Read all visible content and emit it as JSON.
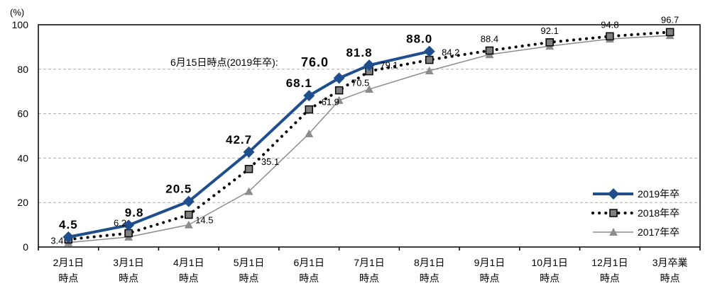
{
  "chart_data": {
    "type": "line",
    "title": "",
    "ylabel": "(%)",
    "xlabel": "",
    "ylim": [
      0,
      100
    ],
    "yticks": [
      0,
      20,
      40,
      60,
      80,
      100
    ],
    "grid": "horizontal dashed",
    "legend_position": "bottom-right",
    "categories": [
      [
        "2月1日",
        "時点"
      ],
      [
        "3月1日",
        "時点"
      ],
      [
        "4月1日",
        "時点"
      ],
      [
        "5月1日",
        "時点"
      ],
      [
        "6月1日",
        "時点"
      ],
      [
        "7月1日",
        "時点"
      ],
      [
        "8月1日",
        "時点"
      ],
      [
        "9月1日",
        "時点"
      ],
      [
        "10月1日",
        "時点"
      ],
      [
        "12月1日",
        "時点"
      ],
      [
        "3月卒業",
        "時点"
      ]
    ],
    "x_order": [
      "2月1日",
      "3月1日",
      "4月1日",
      "5月1日",
      "6月1日",
      "6月15日",
      "7月1日",
      "8月1日",
      "9月1日",
      "10月1日",
      "12月1日",
      "3月卒業"
    ],
    "series": [
      {
        "name": "2019年卒",
        "color": "#1f4e8c",
        "marker": "diamond",
        "style": "solid-thick",
        "points": [
          {
            "x": "2月1日",
            "y": 4.5,
            "label": "4.5"
          },
          {
            "x": "3月1日",
            "y": 9.8,
            "label": "9.8"
          },
          {
            "x": "4月1日",
            "y": 20.5,
            "label": "20.5"
          },
          {
            "x": "5月1日",
            "y": 42.7,
            "label": "42.7"
          },
          {
            "x": "6月1日",
            "y": 68.1,
            "label": "68.1"
          },
          {
            "x": "6月15日",
            "y": 76.0,
            "label": ""
          },
          {
            "x": "7月1日",
            "y": 81.8,
            "label": "81.8"
          },
          {
            "x": "8月1日",
            "y": 88.0,
            "label": "88.0"
          }
        ]
      },
      {
        "name": "2018年卒",
        "color": "#000000",
        "marker_fill": "#808080",
        "marker": "square",
        "style": "dotted",
        "points": [
          {
            "x": "2月1日",
            "y": 3.4,
            "label": "3.4"
          },
          {
            "x": "3月1日",
            "y": 6.2,
            "label": "6.2"
          },
          {
            "x": "4月1日",
            "y": 14.5,
            "label": "14.5"
          },
          {
            "x": "5月1日",
            "y": 35.1,
            "label": "35.1"
          },
          {
            "x": "6月1日",
            "y": 61.9,
            "label": "61.9"
          },
          {
            "x": "6月15日",
            "y": 70.5,
            "label": "70.5"
          },
          {
            "x": "7月1日",
            "y": 79.1,
            "label": "79.1"
          },
          {
            "x": "8月1日",
            "y": 84.2,
            "label": "84.2"
          },
          {
            "x": "9月1日",
            "y": 88.4,
            "label": "88.4"
          },
          {
            "x": "10月1日",
            "y": 92.1,
            "label": "92.1"
          },
          {
            "x": "12月1日",
            "y": 94.8,
            "label": "94.8"
          },
          {
            "x": "3月卒業",
            "y": 96.7,
            "label": "96.7"
          }
        ]
      },
      {
        "name": "2017年卒",
        "color": "#8c8c8c",
        "marker": "triangle",
        "style": "solid-thin",
        "points": [
          {
            "x": "2月1日",
            "y": 2.0
          },
          {
            "x": "3月1日",
            "y": 4.5
          },
          {
            "x": "4月1日",
            "y": 10.0
          },
          {
            "x": "5月1日",
            "y": 25.0
          },
          {
            "x": "6月1日",
            "y": 51.0
          },
          {
            "x": "6月15日",
            "y": 66.0
          },
          {
            "x": "7月1日",
            "y": 71.0
          },
          {
            "x": "8月1日",
            "y": 79.3
          },
          {
            "x": "9月1日",
            "y": 86.6
          },
          {
            "x": "10月1日",
            "y": 90.4
          },
          {
            "x": "12月1日",
            "y": 93.6
          },
          {
            "x": "3月卒業",
            "y": 95.2
          }
        ]
      }
    ],
    "annotation": {
      "text": "6月15日時点(2019年卒):",
      "value": "76.0"
    }
  }
}
